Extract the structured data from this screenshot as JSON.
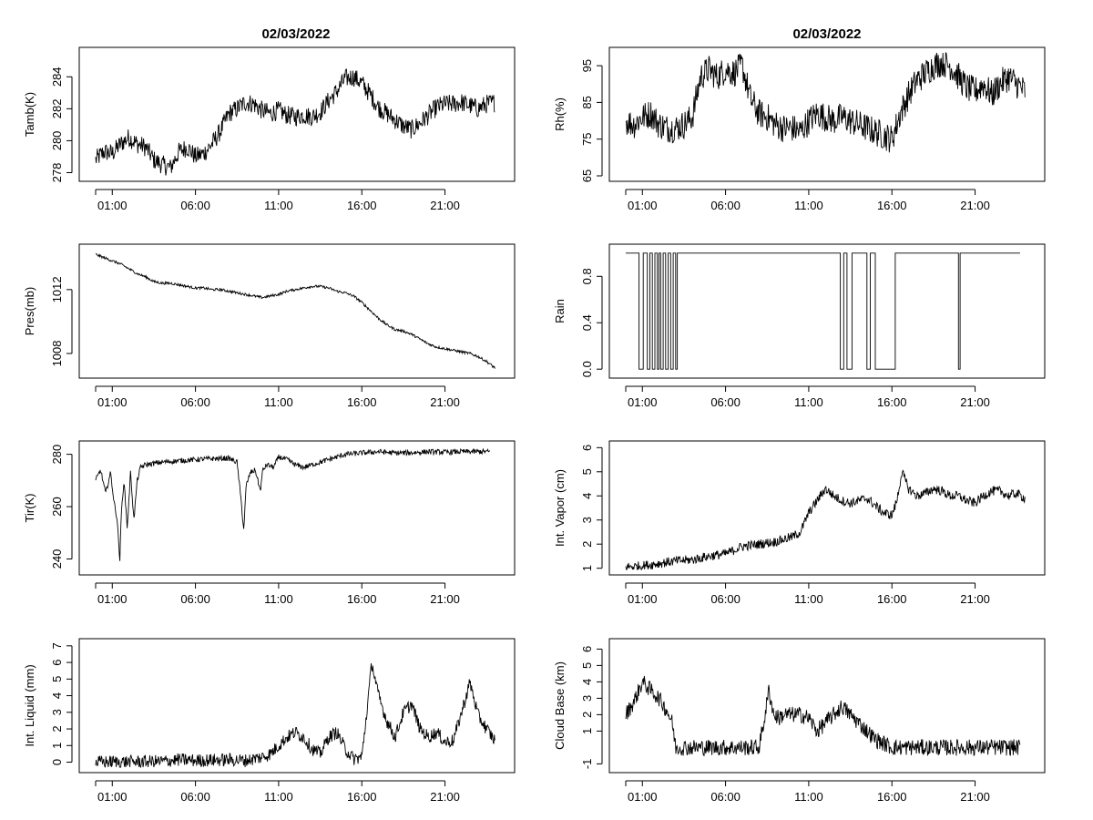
{
  "page": {
    "left_title": "02/03/2022",
    "right_title": "02/03/2022"
  },
  "chart_data": [
    {
      "type": "line",
      "id": "tamb",
      "ylabel": "Tamb(K)",
      "xlabel": "",
      "ylim": [
        277.8,
        285.5
      ],
      "yticks": [
        278,
        280,
        282,
        284
      ],
      "xlim": [
        0,
        24.2
      ],
      "xticks": [
        1,
        6,
        11,
        16,
        21
      ],
      "xticklabels": [
        "01:00",
        "06:00",
        "11:00",
        "16:00",
        "21:00"
      ],
      "x": [
        0,
        0.5,
        1,
        1.5,
        2,
        2.5,
        3,
        3.5,
        4,
        4.5,
        5,
        5.5,
        6,
        6.5,
        7,
        7.5,
        8,
        8.5,
        9,
        9.5,
        10,
        10.5,
        11,
        11.5,
        12,
        12.5,
        13,
        13.5,
        14,
        14.5,
        15,
        15.5,
        16,
        16.5,
        17,
        17.5,
        18,
        18.5,
        19,
        19.5,
        20,
        20.5,
        21,
        21.5,
        22,
        22.5,
        23,
        23.5,
        24
      ],
      "y": [
        278.8,
        279.3,
        279.2,
        279.8,
        280.2,
        279.8,
        279.6,
        278.8,
        278.5,
        278.3,
        279.3,
        279.6,
        279.0,
        279.2,
        279.8,
        280.6,
        281.7,
        282.0,
        282.4,
        282.3,
        281.9,
        281.7,
        281.9,
        281.6,
        281.5,
        281.6,
        281.5,
        281.8,
        282.5,
        283.1,
        283.9,
        284.0,
        283.6,
        282.9,
        282.1,
        281.7,
        281.3,
        280.9,
        280.7,
        281.1,
        281.6,
        282.1,
        282.3,
        282.3,
        282.4,
        282.2,
        282.0,
        282.3,
        282.4
      ],
      "noise": 0.6
    },
    {
      "type": "line",
      "id": "rh",
      "ylabel": "Rh(%)",
      "xlabel": "",
      "ylim": [
        65,
        98.5
      ],
      "yticks": [
        65,
        75,
        85,
        95
      ],
      "xlim": [
        0,
        24.2
      ],
      "xticks": [
        1,
        6,
        11,
        16,
        21
      ],
      "xticklabels": [
        "01:00",
        "06:00",
        "11:00",
        "16:00",
        "21:00"
      ],
      "x": [
        0,
        0.5,
        1,
        1.5,
        2,
        2.5,
        3,
        3.5,
        4,
        4.5,
        5,
        5.5,
        6,
        6.5,
        7,
        7.5,
        8,
        8.5,
        9,
        9.5,
        10,
        10.5,
        11,
        11.5,
        12,
        12.5,
        13,
        13.5,
        14,
        14.5,
        15,
        15.5,
        16,
        16.5,
        17,
        17.5,
        18,
        18.5,
        19,
        19.5,
        20,
        20.5,
        21,
        21.5,
        22,
        22.5,
        23,
        23.5,
        24
      ],
      "y": [
        80,
        79,
        81,
        82,
        79,
        78,
        78,
        79,
        81,
        92,
        94,
        92,
        94,
        93,
        95,
        86,
        82,
        81,
        79,
        78,
        78,
        77,
        80,
        82,
        81,
        80,
        81,
        80,
        79,
        78,
        77,
        76,
        75,
        82,
        87,
        91,
        93,
        95,
        96,
        95,
        92,
        89,
        88,
        90,
        87,
        90,
        92,
        90,
        88
      ],
      "noise": 4
    },
    {
      "type": "line",
      "id": "pres",
      "ylabel": "Pres(mb)",
      "xlabel": "",
      "ylim": [
        1006.8,
        1014.5
      ],
      "yticks": [
        1008,
        1012
      ],
      "xlim": [
        0,
        24.2
      ],
      "xticks": [
        1,
        6,
        11,
        16,
        21
      ],
      "xticklabels": [
        "01:00",
        "06:00",
        "11:00",
        "16:00",
        "21:00"
      ],
      "x": [
        0,
        0.5,
        1,
        1.5,
        2,
        2.5,
        3,
        3.5,
        4,
        4.5,
        5,
        5.5,
        6,
        6.5,
        7,
        7.5,
        8,
        8.5,
        9,
        9.5,
        10,
        10.5,
        11,
        11.5,
        12,
        12.5,
        13,
        13.5,
        14,
        14.5,
        15,
        15.5,
        16,
        16.5,
        17,
        17.5,
        18,
        18.5,
        19,
        19.5,
        20,
        20.5,
        21,
        21.5,
        22,
        22.5,
        23,
        23.5,
        24
      ],
      "y": [
        1014.2,
        1014.0,
        1013.8,
        1013.6,
        1013.3,
        1013.0,
        1012.8,
        1012.5,
        1012.4,
        1012.4,
        1012.3,
        1012.2,
        1012.1,
        1012.1,
        1012.0,
        1012.0,
        1011.9,
        1011.8,
        1011.7,
        1011.6,
        1011.5,
        1011.6,
        1011.7,
        1011.9,
        1012.0,
        1012.1,
        1012.2,
        1012.2,
        1012.1,
        1011.9,
        1011.8,
        1011.6,
        1011.2,
        1010.7,
        1010.2,
        1009.8,
        1009.5,
        1009.4,
        1009.2,
        1008.9,
        1008.6,
        1008.4,
        1008.3,
        1008.2,
        1008.1,
        1008.0,
        1007.8,
        1007.5,
        1007.1
      ],
      "noise": 0.08
    },
    {
      "type": "line",
      "id": "rain",
      "ylabel": "Rain",
      "xlabel": "",
      "ylim": [
        -0.03,
        1.03
      ],
      "yticks": [
        0,
        0.4,
        0.8
      ],
      "yticklabels": [
        "0.0",
        "0.4",
        "0.8"
      ],
      "xlim": [
        0,
        24.2
      ],
      "xticks": [
        1,
        6,
        11,
        16,
        21
      ],
      "xticklabels": [
        "01:00",
        "06:00",
        "11:00",
        "16:00",
        "21:00"
      ],
      "x": [
        0,
        0.8,
        0.8,
        1.05,
        1.05,
        1.3,
        1.3,
        1.45,
        1.45,
        1.6,
        1.6,
        1.75,
        1.75,
        1.9,
        1.9,
        2.0,
        2.0,
        2.1,
        2.1,
        2.25,
        2.25,
        2.4,
        2.4,
        2.55,
        2.55,
        2.7,
        2.7,
        2.85,
        2.85,
        3.0,
        3.0,
        3.1,
        3.1,
        12.9,
        12.9,
        13.1,
        13.1,
        13.3,
        13.3,
        13.6,
        13.6,
        13.8,
        13.8,
        14.5,
        14.5,
        14.7,
        14.7,
        15.0,
        15.0,
        16.2,
        16.2,
        16.4,
        16.4,
        20.0,
        20.0,
        20.1,
        20.1,
        23.7
      ],
      "y": [
        1,
        1,
        0,
        0,
        1,
        1,
        0,
        0,
        1,
        1,
        0,
        0,
        1,
        1,
        0,
        0,
        1,
        1,
        0,
        0,
        1,
        1,
        0,
        0,
        1,
        1,
        0,
        0,
        1,
        1,
        0,
        0,
        1,
        1,
        0,
        0,
        1,
        1,
        0,
        0,
        1,
        1,
        1,
        1,
        0,
        0,
        1,
        1,
        0,
        0,
        1,
        1,
        1,
        1,
        0,
        0,
        1,
        1
      ],
      "noise": 0
    },
    {
      "type": "line",
      "id": "tir",
      "ylabel": "Tir(K)",
      "xlabel": "",
      "ylim": [
        236,
        283
      ],
      "yticks": [
        240,
        260,
        280
      ],
      "xlim": [
        0,
        24.2
      ],
      "xticks": [
        1,
        6,
        11,
        16,
        21
      ],
      "xticklabels": [
        "01:00",
        "06:00",
        "11:00",
        "16:00",
        "21:00"
      ],
      "x": [
        0,
        0.3,
        0.6,
        0.9,
        1.1,
        1.3,
        1.45,
        1.55,
        1.7,
        1.9,
        2.1,
        2.3,
        2.5,
        2.7,
        3.0,
        3.5,
        4,
        5,
        6,
        7,
        8,
        8.5,
        8.75,
        8.9,
        9.05,
        9.3,
        9.6,
        9.9,
        10.05,
        10.3,
        10.7,
        11,
        11.5,
        12,
        12.5,
        13,
        13.5,
        14,
        15,
        16,
        17,
        18,
        19,
        20,
        21,
        22,
        23,
        23.7
      ],
      "y": [
        270,
        274,
        265,
        273,
        262,
        255,
        239,
        258,
        270,
        252,
        273,
        255,
        270,
        275,
        276,
        276.5,
        277,
        277.5,
        278,
        278.3,
        278.5,
        277,
        262,
        251,
        268,
        273,
        274,
        266,
        274,
        276,
        275,
        279,
        278,
        276,
        275,
        276,
        277,
        278,
        280,
        280.5,
        281,
        280.5,
        280.6,
        281,
        280.8,
        281,
        281,
        281
      ],
      "noise": 1
    },
    {
      "type": "line",
      "id": "vapor",
      "ylabel": "Int. Vapor (cm)",
      "xlabel": "",
      "ylim": [
        0.95,
        6.05
      ],
      "yticks": [
        1,
        2,
        3,
        4,
        5,
        6
      ],
      "xlim": [
        0,
        24.2
      ],
      "xticks": [
        1,
        6,
        11,
        16,
        21
      ],
      "xticklabels": [
        "01:00",
        "06:00",
        "11:00",
        "16:00",
        "21:00"
      ],
      "x": [
        0,
        1,
        2,
        3,
        4,
        5,
        6,
        6.5,
        7,
        8,
        9,
        9.5,
        10,
        10.5,
        11,
        11.5,
        12,
        12.5,
        13,
        13.5,
        14,
        14.5,
        15,
        15.5,
        16,
        16.3,
        16.6,
        17,
        17.5,
        18,
        18.5,
        19,
        19.5,
        20,
        20.5,
        21,
        21.5,
        22,
        22.5,
        23,
        23.5,
        24
      ],
      "y": [
        1.05,
        1.1,
        1.2,
        1.3,
        1.35,
        1.5,
        1.6,
        1.75,
        1.9,
        2.0,
        2.1,
        2.2,
        2.3,
        2.5,
        3.3,
        3.8,
        4.3,
        4.0,
        3.8,
        3.7,
        3.8,
        3.9,
        3.6,
        3.3,
        3.2,
        3.8,
        5.0,
        4.3,
        4.0,
        4.1,
        4.3,
        4.2,
        4.0,
        4.0,
        3.8,
        3.7,
        4.0,
        4.2,
        4.2,
        4.0,
        4.1,
        3.9
      ],
      "noise": 0.2
    },
    {
      "type": "line",
      "id": "liquid",
      "ylabel": "Int. Liquid (mm)",
      "xlabel": "",
      "ylim": [
        -0.3,
        7.1
      ],
      "yticks": [
        0,
        1,
        2,
        3,
        4,
        5,
        6,
        7
      ],
      "xlim": [
        0,
        24.2
      ],
      "xticks": [
        1,
        6,
        11,
        16,
        21
      ],
      "xticklabels": [
        "01:00",
        "06:00",
        "11:00",
        "16:00",
        "21:00"
      ],
      "x": [
        0,
        1,
        2,
        3,
        4,
        5,
        6,
        7,
        8,
        9,
        10,
        10.5,
        11,
        11.5,
        12,
        12.5,
        13,
        13.5,
        14,
        14.5,
        15,
        15.5,
        16,
        16.3,
        16.6,
        17,
        17.5,
        18,
        18.5,
        19,
        19.5,
        20,
        20.5,
        21,
        21.5,
        22,
        22.5,
        23,
        23.5,
        24
      ],
      "y": [
        0,
        0.02,
        0.02,
        0.03,
        0.05,
        0.15,
        0.1,
        0.12,
        0.15,
        0.1,
        0.3,
        0.5,
        1.0,
        1.5,
        1.8,
        1.5,
        0.8,
        0.5,
        1.5,
        1.8,
        0.8,
        0.2,
        0.3,
        3.0,
        6.0,
        4.0,
        2.5,
        1.5,
        3.0,
        3.5,
        2.0,
        1.5,
        1.8,
        1.2,
        1.3,
        3.0,
        4.8,
        2.8,
        2.0,
        1.3
      ],
      "noise": 0.4
    },
    {
      "type": "line",
      "id": "cloud",
      "ylabel": "Cloud Base (km)",
      "xlabel": "",
      "ylim": [
        -1.2,
        6.3
      ],
      "yticks": [
        -1,
        1,
        2,
        3,
        4,
        5,
        6
      ],
      "xlim": [
        0,
        24.2
      ],
      "xticks": [
        1,
        6,
        11,
        16,
        21
      ],
      "xticklabels": [
        "01:00",
        "06:00",
        "11:00",
        "16:00",
        "21:00"
      ],
      "x": [
        0,
        0.5,
        1,
        1.5,
        2,
        2.5,
        2.8,
        3,
        4,
        5,
        6,
        7,
        8,
        8.3,
        8.6,
        8.9,
        9.2,
        9.5,
        10,
        10.5,
        11,
        11.5,
        12,
        12.5,
        13,
        13.5,
        14,
        14.5,
        15,
        16,
        17,
        18,
        19,
        20,
        21,
        22,
        23,
        23.7
      ],
      "y": [
        2.0,
        2.8,
        4.0,
        3.5,
        3.0,
        2.2,
        1.5,
        0,
        0,
        0,
        0,
        0,
        0,
        1.5,
        3.5,
        2.0,
        1.8,
        2.0,
        2.0,
        2.0,
        1.8,
        1.0,
        1.5,
        2.0,
        2.5,
        2.0,
        1.5,
        1.0,
        0.5,
        0,
        0,
        0,
        0,
        0,
        0,
        0,
        0,
        0
      ],
      "noise": 0.5
    }
  ]
}
